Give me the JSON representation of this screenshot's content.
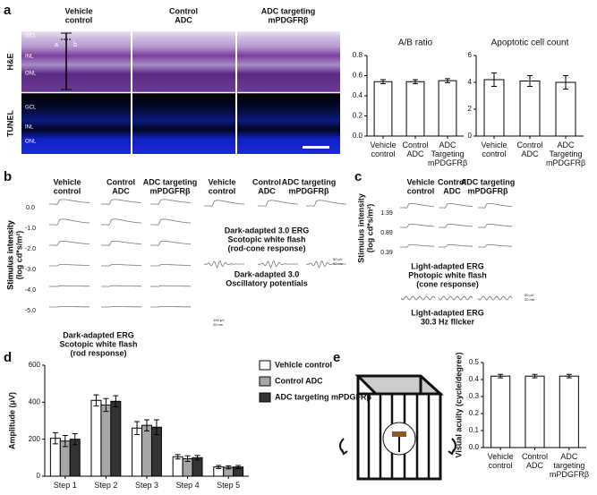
{
  "figure": {
    "panel_labels": [
      "a",
      "b",
      "c",
      "d",
      "e"
    ],
    "a": {
      "columns": [
        [
          "Vehicle",
          "control"
        ],
        [
          "Control",
          "ADC"
        ],
        [
          "ADC targeting",
          "mPDGFRβ"
        ]
      ],
      "rows": [
        "H&E",
        "TUNEL"
      ],
      "layers": [
        "GCL",
        "INL",
        "ONL"
      ],
      "markers": [
        "a",
        "b"
      ]
    },
    "b": {
      "columns": [
        [
          "Vehicle",
          "control"
        ],
        [
          "Control",
          "ADC"
        ],
        [
          "ADC targeting",
          "mPDGFRβ"
        ]
      ],
      "intensities": [
        "0.0",
        "-1.0",
        "-2.0",
        "-3.0",
        "-4.0",
        "-5.0"
      ],
      "ylabel": [
        "Stimulus intensity",
        "(log cd*s/m²)"
      ],
      "rod_caption": [
        "Dark-adapted ERG",
        "Scotopic white flash",
        "(rod response)"
      ],
      "rod_cone_caption": [
        "Dark-adapted 3.0 ERG",
        "Scotopic white flash",
        "(rod-cone response)"
      ],
      "op_caption": [
        "Dark-adapted 3.0",
        "Oscillatory potentials"
      ],
      "scale_rod": [
        "100 μV",
        "20 ms"
      ],
      "scale_op": [
        "50 μV",
        "10 ms"
      ]
    },
    "c": {
      "columns": [
        [
          "Vehicle",
          "control"
        ],
        [
          "Control",
          "ADC"
        ],
        [
          "ADC targeting",
          "mPDGFRβ"
        ]
      ],
      "intensities": [
        "1.39",
        "0.89",
        "0.39"
      ],
      "ylabel": [
        "Stimulus intensity",
        "(log cd*s/m²)"
      ],
      "cone_caption": [
        "Light-adapted ERG",
        "Photopic white flash",
        "(cone response)"
      ],
      "flicker_caption": [
        "Light-adapted ERG",
        "30.3 Hz flicker"
      ],
      "scale": [
        "50 μV",
        "20 ms"
      ]
    }
  },
  "chart_data": [
    {
      "type": "bar",
      "title": "A/B ratio",
      "categories": [
        "Vehicle control",
        "Control ADC",
        "ADC Targeting mPDGFRβ"
      ],
      "values": [
        0.54,
        0.54,
        0.55
      ],
      "errors": [
        0.02,
        0.02,
        0.02
      ],
      "color": "#ffffff",
      "ylim": [
        0,
        0.8
      ],
      "yticks": [
        {
          "value": 0,
          "label": "0.0"
        },
        0.2,
        0.4,
        0.6,
        0.8
      ]
    },
    {
      "type": "bar",
      "title": "Apoptotic cell count",
      "categories": [
        "Vehicle control",
        "Control ADC",
        "ADC Targeting mPDGFRβ"
      ],
      "values": [
        4.2,
        4.1,
        4.0
      ],
      "errors": [
        0.5,
        0.4,
        0.5
      ],
      "color": "#ffffff",
      "ylim": [
        0,
        6
      ],
      "yticks": [
        0,
        2,
        4,
        6
      ]
    },
    {
      "type": "bar",
      "ylabel": "Amplitude (μV)",
      "categories": [
        "Step 1",
        "Step 2",
        "Step 3",
        "Step 4",
        "Step 5"
      ],
      "series": [
        {
          "name": "Vehicle control",
          "color": "#ffffff",
          "values": [
            205,
            410,
            260,
            105,
            50
          ],
          "errors": [
            30,
            30,
            35,
            12,
            8
          ]
        },
        {
          "name": "Control ADC",
          "color": "#a6a6a6",
          "values": [
            190,
            385,
            275,
            95,
            48
          ],
          "errors": [
            30,
            35,
            30,
            15,
            8
          ]
        },
        {
          "name": "ADC targeting mPDGFRβ",
          "color": "#333333",
          "values": [
            200,
            405,
            265,
            100,
            50
          ],
          "errors": [
            30,
            30,
            40,
            12,
            8
          ]
        }
      ],
      "ylim": [
        0,
        600
      ],
      "yticks": [
        0,
        200,
        400,
        600
      ]
    },
    {
      "type": "bar",
      "ylabel": "Visual acuity (cycle/degree)",
      "categories": [
        "Vehicle control",
        "Control ADC",
        "ADC targeting mPDGFRβ"
      ],
      "values": [
        0.42,
        0.42,
        0.42
      ],
      "errors": [
        0.01,
        0.01,
        0.01
      ],
      "color": "#ffffff",
      "ylim": [
        0,
        0.5
      ],
      "yticks": [
        {
          "value": 0,
          "label": "0.0"
        },
        0.1,
        0.2,
        0.3,
        0.4,
        0.5
      ]
    }
  ]
}
